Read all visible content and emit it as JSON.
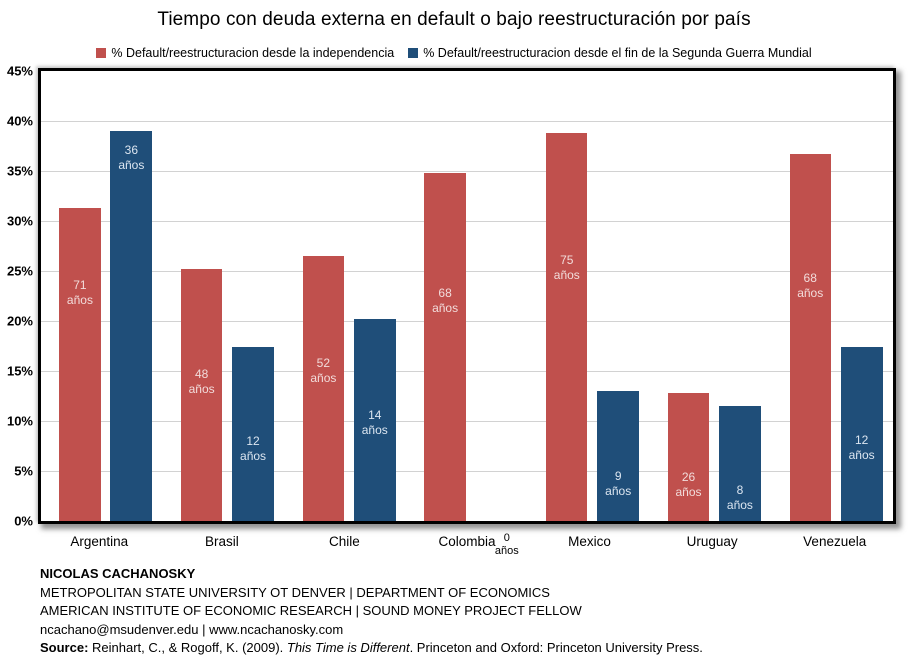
{
  "title": "Tiempo con deuda externa en default o bajo reestructuración por país",
  "chart_data": {
    "type": "bar",
    "title": "Tiempo con deuda externa en default o bajo reestructuración por país",
    "categories": [
      "Argentina",
      "Brasil",
      "Chile",
      "Colombia",
      "Mexico",
      "Uruguay",
      "Venezuela"
    ],
    "series": [
      {
        "name": "% Default/reestructuracion desde la independencia",
        "color": "#C0504D",
        "label_color": "#F2DCDB",
        "values": [
          31.3,
          25.2,
          26.5,
          34.8,
          38.8,
          12.8,
          36.7
        ],
        "bar_labels": [
          "71 años",
          "48 años",
          "52 años",
          "68 años",
          "75 años",
          "26 años",
          "68 años"
        ],
        "label_center_value": [
          22.8,
          13.9,
          15.0,
          22.0,
          25.3,
          3.6,
          23.5
        ]
      },
      {
        "name": "% Default/reestructuracion desde el fin de la Segunda Guerra Mundial",
        "color": "#1F4E79",
        "label_color": "#DCE6F1",
        "values": [
          39.0,
          17.4,
          20.2,
          0.0,
          13.0,
          11.5,
          17.4
        ],
        "bar_labels": [
          "36 años",
          "12 años",
          "14 años",
          "0 años",
          "9 años",
          "8 años",
          "12 años"
        ],
        "label_center_value": [
          36.3,
          7.2,
          9.8,
          null,
          3.7,
          2.3,
          7.3
        ]
      }
    ],
    "ylim": [
      0,
      45
    ],
    "ytick_step": 5,
    "ytick_labels": [
      "0%",
      "5%",
      "10%",
      "15%",
      "20%",
      "25%",
      "30%",
      "35%",
      "40%",
      "45%"
    ],
    "grid": true,
    "legend_position": "top",
    "gridline_color": "#d2d2d2"
  },
  "footer": {
    "author": "NICOLAS CACHANOSKY",
    "affiliation1": "METROPOLITAN STATE UNIVERSITY OT DENVER | DEPARTMENT OF ECONOMICS",
    "affiliation2": "AMERICAN INSTITUTE OF ECONOMIC RESEARCH | SOUND MONEY PROJECT FELLOW",
    "contact": "ncachano@msudenver.edu  |  www.ncachanosky.com",
    "source": {
      "prefix_bold": "Source:",
      "citation": " Reinhart, C., & Rogoff, K. (2009). ",
      "title_italic": "This Time is Different",
      "suffix": ". Princeton and Oxford: Princeton University Press."
    }
  }
}
